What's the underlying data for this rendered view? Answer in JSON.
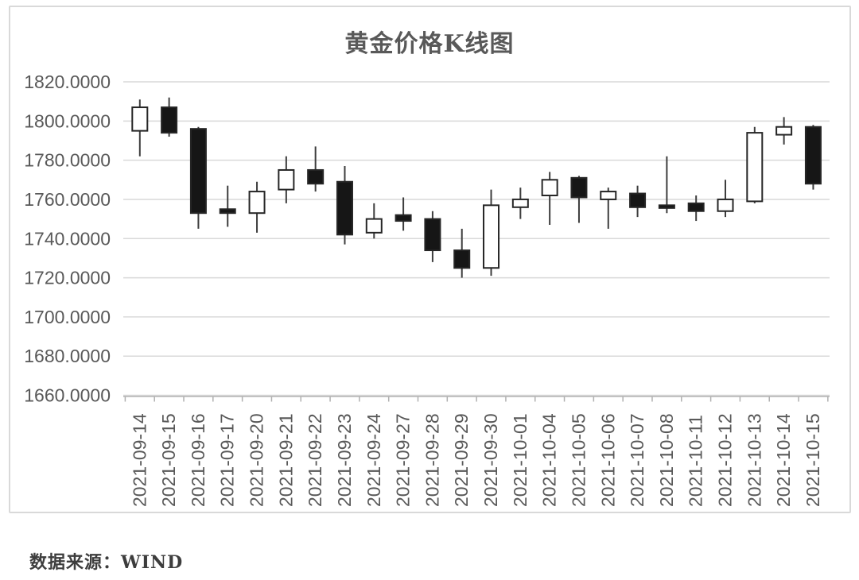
{
  "window": {
    "background": "#ffffff"
  },
  "chart": {
    "title": "黄金价格K线图",
    "source_note": "数据来源：WIND",
    "colors": {
      "frame_border": "#d9d9d9",
      "gridline": "#d9d9d9",
      "axis_line": "#b0b0b0",
      "tick": "#b0b0b0",
      "axis_label": "#595959",
      "title": "#595959",
      "wick": "#3d3d3d",
      "candle_border": "#262626",
      "up_fill": "#ffffff",
      "down_fill": "#161616"
    }
  },
  "chart_data": {
    "type": "candlestick",
    "title": "黄金价格K线图",
    "source": "WIND",
    "grid": true,
    "legend": false,
    "ylim": [
      1660,
      1820
    ],
    "y_tick_step": 20,
    "y_tick_labels": [
      "1820.0000",
      "1800.0000",
      "1780.0000",
      "1760.0000",
      "1740.0000",
      "1720.0000",
      "1700.0000",
      "1680.0000",
      "1660.0000"
    ],
    "categories": [
      "2021-09-14",
      "2021-09-15",
      "2021-09-16",
      "2021-09-17",
      "2021-09-20",
      "2021-09-21",
      "2021-09-22",
      "2021-09-23",
      "2021-09-24",
      "2021-09-27",
      "2021-09-28",
      "2021-09-29",
      "2021-09-30",
      "2021-10-01",
      "2021-10-04",
      "2021-10-05",
      "2021-10-06",
      "2021-10-07",
      "2021-10-08",
      "2021-10-11",
      "2021-10-12",
      "2021-10-13",
      "2021-10-14",
      "2021-10-15"
    ],
    "series": [
      {
        "name": "黄金价格",
        "ohlc_fields": [
          "open",
          "high",
          "low",
          "close"
        ],
        "up_style": "hollow-white",
        "down_style": "filled-black",
        "ohlc": [
          [
            1795,
            1811,
            1782,
            1807
          ],
          [
            1807,
            1812,
            1792,
            1794
          ],
          [
            1796,
            1797,
            1745,
            1753
          ],
          [
            1755,
            1767,
            1746,
            1753
          ],
          [
            1753,
            1769,
            1743,
            1764
          ],
          [
            1765,
            1782,
            1758,
            1775
          ],
          [
            1775,
            1787,
            1764,
            1768
          ],
          [
            1769,
            1777,
            1737,
            1742
          ],
          [
            1743,
            1758,
            1740,
            1750
          ],
          [
            1752,
            1761,
            1744,
            1749
          ],
          [
            1750,
            1754,
            1728,
            1734
          ],
          [
            1734,
            1745,
            1720,
            1725
          ],
          [
            1725,
            1765,
            1721,
            1757
          ],
          [
            1756,
            1766,
            1750,
            1760
          ],
          [
            1762,
            1774,
            1747,
            1770
          ],
          [
            1771,
            1772,
            1748,
            1761
          ],
          [
            1760,
            1766,
            1745,
            1764
          ],
          [
            1763,
            1767,
            1751,
            1756
          ],
          [
            1757,
            1782,
            1753,
            1756
          ],
          [
            1758,
            1762,
            1749,
            1754
          ],
          [
            1754,
            1770,
            1751,
            1760
          ],
          [
            1759,
            1797,
            1758,
            1794
          ],
          [
            1793,
            1802,
            1788,
            1797
          ],
          [
            1797,
            1798,
            1765,
            1768
          ]
        ]
      }
    ]
  }
}
